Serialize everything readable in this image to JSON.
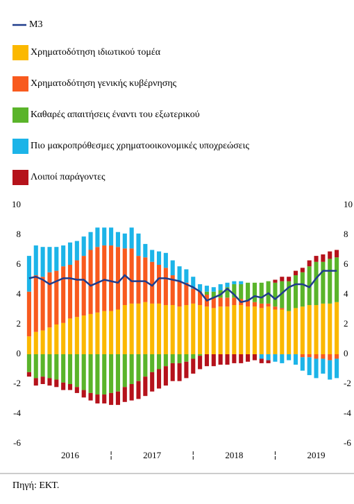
{
  "chart_data": {
    "type": "bar",
    "stacked": true,
    "categories": [
      null,
      null,
      null,
      null,
      null,
      null,
      "2016",
      null,
      null,
      null,
      null,
      null,
      null,
      null,
      null,
      null,
      null,
      null,
      "2017",
      null,
      null,
      null,
      null,
      null,
      null,
      null,
      null,
      null,
      null,
      null,
      "2018",
      null,
      null,
      null,
      null,
      null,
      null,
      null,
      null,
      null,
      null,
      null,
      "2019",
      null,
      null,
      null
    ],
    "series": [
      {
        "name": "M3",
        "type": "line",
        "color": "#1f3c8c",
        "values": [
          5.1,
          5.2,
          5.0,
          4.7,
          4.9,
          5.1,
          5.1,
          5.0,
          5.0,
          4.6,
          4.8,
          5.0,
          4.9,
          4.8,
          5.3,
          4.9,
          4.9,
          4.9,
          4.6,
          5.1,
          5.1,
          5.0,
          4.9,
          4.7,
          4.5,
          4.2,
          3.6,
          3.8,
          4.0,
          4.4,
          4.0,
          3.5,
          3.6,
          3.9,
          3.8,
          4.1,
          3.7,
          4.1,
          4.5,
          4.7,
          4.7,
          4.5,
          5.1,
          5.6,
          5.6,
          5.6
        ]
      },
      {
        "name": "Χρηματοδότηση ιδιωτικού τομέα",
        "type": "bar",
        "color": "#fbb800",
        "values": [
          1.2,
          1.5,
          1.6,
          1.8,
          2.0,
          2.1,
          2.4,
          2.5,
          2.6,
          2.7,
          2.8,
          2.9,
          2.9,
          3.0,
          3.3,
          3.4,
          3.4,
          3.5,
          3.4,
          3.4,
          3.3,
          3.3,
          3.2,
          3.3,
          3.4,
          3.3,
          3.2,
          3.1,
          3.2,
          3.2,
          3.3,
          3.3,
          3.2,
          3.2,
          3.1,
          3.2,
          3.0,
          3.0,
          2.9,
          3.1,
          3.2,
          3.3,
          3.3,
          3.4,
          3.4,
          3.5
        ]
      },
      {
        "name": "Χρηματοδότηση γενικής κυβέρνησης",
        "type": "bar",
        "color": "#f85a1e",
        "values": [
          3.0,
          3.8,
          3.6,
          3.7,
          3.6,
          3.8,
          3.6,
          3.8,
          4.0,
          4.3,
          4.4,
          4.4,
          4.4,
          4.2,
          3.8,
          3.7,
          3.2,
          3.0,
          2.8,
          2.6,
          2.5,
          2.0,
          1.7,
          1.5,
          1.0,
          0.9,
          0.8,
          0.7,
          0.6,
          0.6,
          0.5,
          0.4,
          0.4,
          0.3,
          0.3,
          0.2,
          0.2,
          0.1,
          0,
          0,
          -0.2,
          -0.2,
          -0.3,
          -0.3,
          -0.4,
          -0.3
        ]
      },
      {
        "name": "Καθαρές απαιτήσεις έναντι του εξωτερικού",
        "type": "bar",
        "color": "#5ab42a",
        "values": [
          -1.2,
          -1.6,
          -1.5,
          -1.6,
          -1.7,
          -1.9,
          -2.0,
          -2.2,
          -2.4,
          -2.6,
          -2.7,
          -2.7,
          -2.6,
          -2.5,
          -2.2,
          -2.0,
          -1.8,
          -1.5,
          -1.2,
          -1.0,
          -0.8,
          -0.6,
          -0.6,
          -0.5,
          -0.3,
          -0.1,
          0.2,
          0.4,
          0.5,
          0.7,
          0.9,
          1.0,
          1.2,
          1.3,
          1.4,
          1.5,
          1.6,
          1.8,
          2.0,
          2.2,
          2.3,
          2.6,
          2.9,
          2.8,
          3.0,
          3.0
        ]
      },
      {
        "name": "Πιο μακροπρόθεσμες χρηματοοικονομικές υποχρεώσεις",
        "type": "bar",
        "color": "#1cb4e8",
        "values": [
          2.4,
          2.0,
          2.0,
          1.7,
          1.6,
          1.4,
          1.5,
          1.3,
          1.3,
          1.2,
          1.3,
          1.2,
          1.2,
          1.0,
          1.0,
          1.4,
          1.5,
          0.9,
          0.8,
          0.9,
          1.0,
          1.0,
          1.0,
          0.9,
          0.8,
          0.5,
          0.4,
          0.3,
          0.4,
          0.3,
          0.2,
          0.2,
          0,
          0,
          -0.3,
          -0.4,
          -0.5,
          -0.6,
          -0.4,
          -0.7,
          -0.9,
          -1.2,
          -1.3,
          -1.0,
          -1.3,
          -1.3
        ]
      },
      {
        "name": "Λοιποί παράγοντες",
        "type": "bar",
        "color": "#b5121b",
        "values": [
          -0.3,
          -0.5,
          -0.5,
          -0.5,
          -0.5,
          -0.5,
          -0.4,
          -0.4,
          -0.5,
          -0.5,
          -0.6,
          -0.6,
          -0.8,
          -0.9,
          -1.0,
          -1.1,
          -1.2,
          -1.3,
          -1.3,
          -1.3,
          -1.3,
          -1.2,
          -1.2,
          -1.1,
          -1.0,
          -0.9,
          -0.8,
          -0.8,
          -0.7,
          -0.7,
          -0.6,
          -0.6,
          -0.5,
          -0.4,
          -0.3,
          -0.2,
          0.2,
          0.3,
          0.3,
          0.3,
          0.3,
          0.4,
          0.4,
          0.5,
          0.5,
          0.5
        ]
      }
    ],
    "ylim": [
      -6,
      10
    ],
    "yticks": [
      -6,
      -4,
      -2,
      0,
      2,
      4,
      6,
      8,
      10
    ],
    "y2lim": [
      -6,
      10
    ],
    "y2ticks": [
      -6,
      -4,
      -2,
      0,
      2,
      4,
      6,
      8,
      10
    ],
    "grid": false,
    "source": "Πηγή: ΕΚΤ."
  }
}
